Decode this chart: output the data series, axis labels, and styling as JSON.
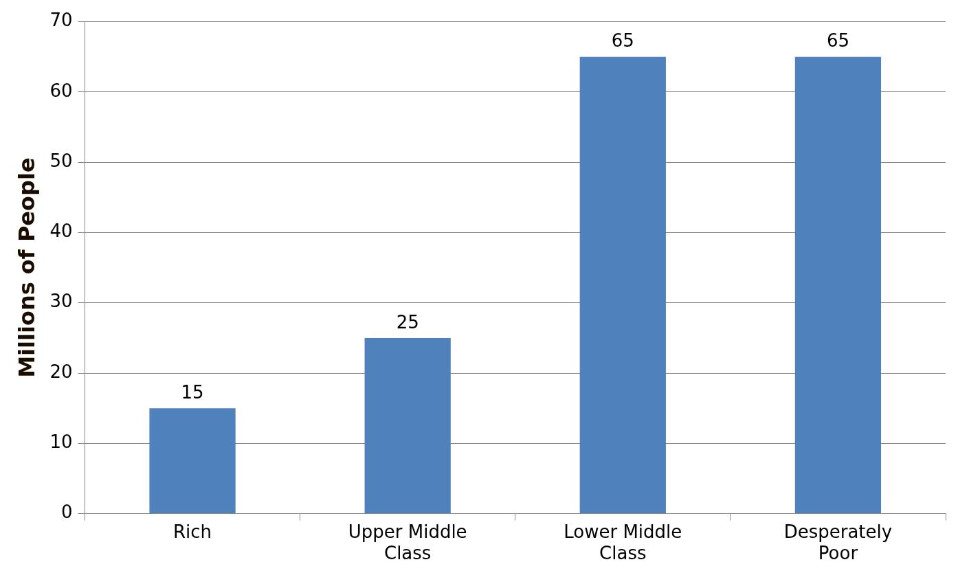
{
  "chart_data": {
    "type": "bar",
    "ylabel": "Millions of People",
    "categories": [
      "Rich",
      "Upper Middle Class",
      "Lower Middle Class",
      "Desperately Poor"
    ],
    "values": [
      15,
      25,
      65,
      65
    ],
    "color": "#4f81bd",
    "ylim": [
      0,
      70
    ],
    "yticks": [
      0,
      10,
      20,
      30,
      40,
      50,
      60,
      70
    ],
    "grid": "y",
    "data_labels": true
  }
}
